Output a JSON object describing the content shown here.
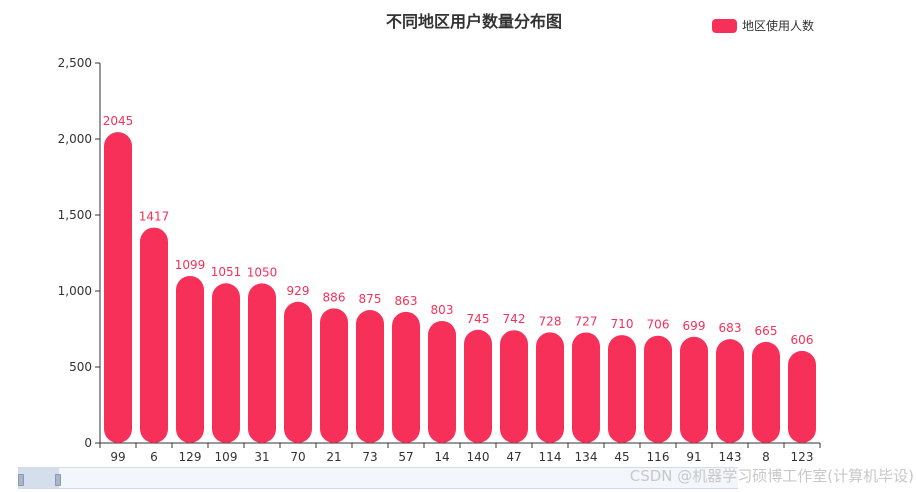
{
  "chart_data": {
    "type": "bar",
    "title": "不同地区用户数量分布图",
    "legend": {
      "label": "地区使用人数",
      "position": "top-right"
    },
    "categories": [
      "99",
      "6",
      "129",
      "109",
      "31",
      "70",
      "21",
      "73",
      "57",
      "14",
      "140",
      "47",
      "114",
      "134",
      "45",
      "116",
      "91",
      "143",
      "8",
      "123"
    ],
    "series": [
      {
        "name": "地区使用人数",
        "values": [
          2045,
          1417,
          1099,
          1051,
          1050,
          929,
          886,
          875,
          863,
          803,
          745,
          742,
          728,
          727,
          710,
          706,
          699,
          683,
          665,
          606
        ]
      }
    ],
    "ylim": [
      0,
      2500
    ],
    "yticks": [
      0,
      500,
      1000,
      1500,
      2000,
      2500
    ],
    "ytick_labels": [
      "0",
      "500",
      "1,000",
      "1,500",
      "2,000",
      "2,500"
    ],
    "grid": false,
    "color": "#F7305A",
    "data_labels": true
  },
  "watermark": "CSDN @机器学习硕博工作室(计算机毕设)"
}
